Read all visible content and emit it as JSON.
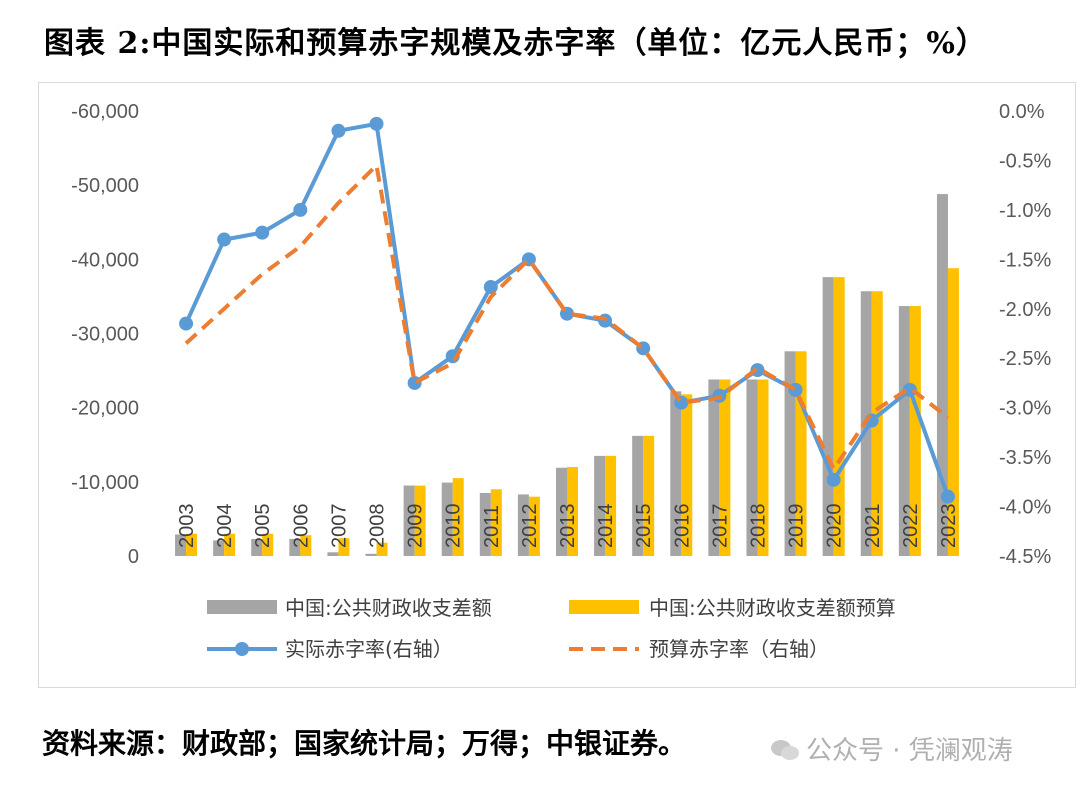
{
  "title": "图表 2:中国实际和预算赤字规模及赤字率（单位：亿元人民币；%）",
  "source": "资料来源：财政部；国家统计局；万得；中银证券。",
  "watermark": "公众号 · 凭澜观涛",
  "colors": {
    "actual_bar": "#a5a5a5",
    "budget_bar": "#ffc000",
    "actual_rate": "#5b9bd5",
    "budget_rate": "#ed7d31"
  },
  "chart_data": {
    "type": "bar",
    "categories": [
      "2003",
      "2004",
      "2005",
      "2006",
      "2007",
      "2008",
      "2009",
      "2010",
      "2011",
      "2012",
      "2013",
      "2014",
      "2015",
      "2016",
      "2017",
      "2018",
      "2019",
      "2020",
      "2021",
      "2022",
      "2023"
    ],
    "left_axis": {
      "ticks": [
        "-60,000",
        "-50,000",
        "-40,000",
        "-30,000",
        "-20,000",
        "-10,000",
        "0"
      ],
      "ylim": [
        0,
        -60000
      ]
    },
    "right_axis": {
      "ticks": [
        "0.0%",
        "-0.5%",
        "-1.0%",
        "-1.5%",
        "-2.0%",
        "-2.5%",
        "-3.0%",
        "-3.5%",
        "-4.0%",
        "-4.5%"
      ],
      "ylim": [
        0,
        -4.5
      ]
    },
    "series": [
      {
        "name": "中国:公共财政收支差额",
        "kind": "bar",
        "axis": "left",
        "values": [
          -2900,
          -2100,
          -2300,
          -2300,
          -500,
          -300,
          -9500,
          -9900,
          -8500,
          -8300,
          -11900,
          -13500,
          -16200,
          -22200,
          -23800,
          -23800,
          -27600,
          -37600,
          -35700,
          -33700,
          -48800
        ]
      },
      {
        "name": "中国:公共财政收支差额预算",
        "kind": "bar",
        "axis": "left",
        "values": [
          -3000,
          -3000,
          -3000,
          -2800,
          -2400,
          -1800,
          -9500,
          -10500,
          -9000,
          -8000,
          -12000,
          -13500,
          -16200,
          -21800,
          -23800,
          -23800,
          -27600,
          -37600,
          -35700,
          -33700,
          -38800
        ]
      },
      {
        "name": "实际赤字率(右轴）",
        "kind": "line",
        "axis": "right",
        "marker": "circle",
        "values": [
          -2.15,
          -1.3,
          -1.23,
          -1.0,
          -0.2,
          -0.13,
          -2.75,
          -2.48,
          -1.78,
          -1.5,
          -2.05,
          -2.12,
          -2.4,
          -2.95,
          -2.88,
          -2.62,
          -2.82,
          -3.73,
          -3.13,
          -2.82,
          -3.9
        ]
      },
      {
        "name": "预算赤字率（右轴）",
        "kind": "line",
        "axis": "right",
        "dash": true,
        "values": [
          -2.35,
          -2.0,
          -1.65,
          -1.37,
          -0.93,
          -0.55,
          -2.75,
          -2.55,
          -1.88,
          -1.5,
          -2.05,
          -2.1,
          -2.4,
          -2.95,
          -2.9,
          -2.6,
          -2.82,
          -3.62,
          -3.05,
          -2.8,
          -3.1
        ]
      }
    ]
  }
}
